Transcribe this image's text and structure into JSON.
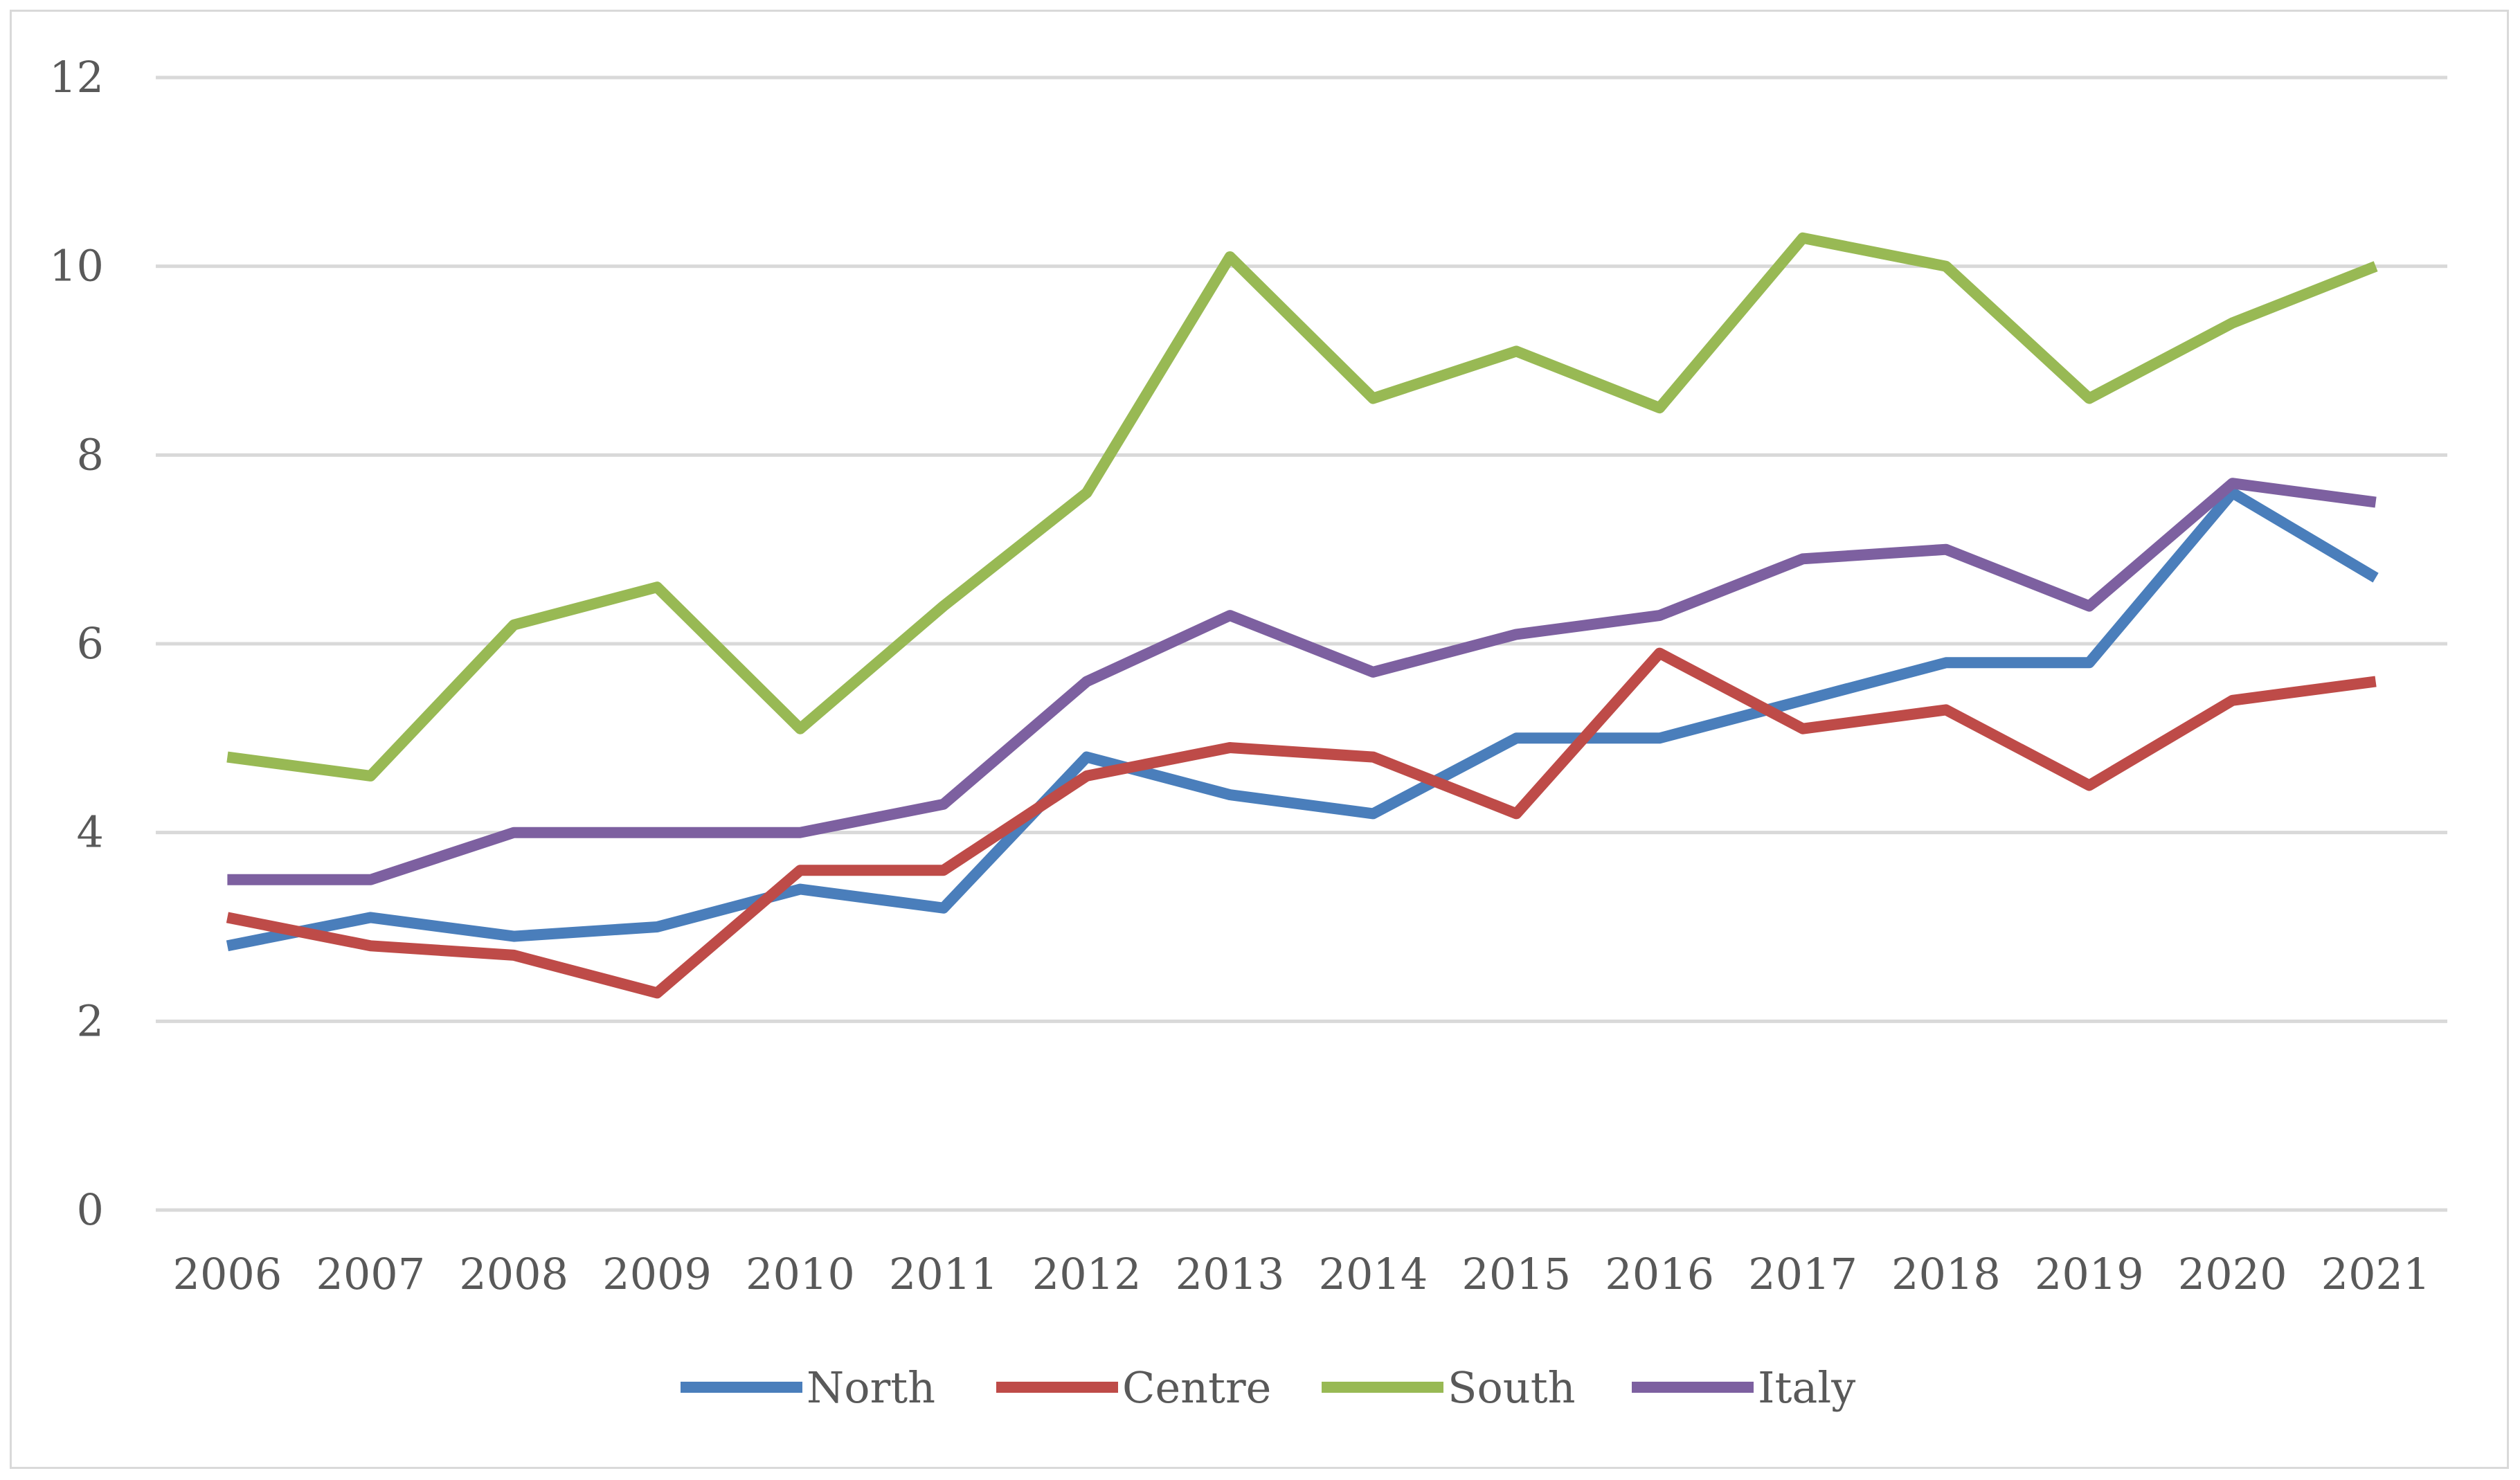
{
  "chart_data": {
    "type": "line",
    "title": "",
    "xlabel": "",
    "ylabel": "",
    "ylim": [
      0,
      12
    ],
    "yticks": [
      0,
      2,
      4,
      6,
      8,
      10,
      12
    ],
    "grid": true,
    "legend_position": "bottom",
    "categories": [
      "2006",
      "2007",
      "2008",
      "2009",
      "2010",
      "2011",
      "2012",
      "2013",
      "2014",
      "2015",
      "2016",
      "2017",
      "2018",
      "2019",
      "2020",
      "2021"
    ],
    "series": [
      {
        "name": "North",
        "color": "#4a7ebb",
        "values": [
          2.8,
          3.1,
          2.9,
          3.0,
          3.4,
          3.2,
          4.8,
          4.4,
          4.2,
          5.0,
          5.0,
          5.4,
          5.8,
          5.8,
          7.6,
          6.7
        ]
      },
      {
        "name": "Centre",
        "color": "#be4b48",
        "values": [
          3.1,
          2.8,
          2.7,
          2.3,
          3.6,
          3.6,
          4.6,
          4.9,
          4.8,
          4.2,
          5.9,
          5.1,
          5.3,
          4.5,
          5.4,
          5.6
        ]
      },
      {
        "name": "South",
        "color": "#98b954",
        "values": [
          4.8,
          4.6,
          6.2,
          6.6,
          5.1,
          6.4,
          7.6,
          10.1,
          8.6,
          9.1,
          8.5,
          10.3,
          10.0,
          8.6,
          9.4,
          10.0
        ]
      },
      {
        "name": "Italy",
        "color": "#7d60a0",
        "values": [
          3.5,
          3.5,
          4.0,
          4.0,
          4.0,
          4.3,
          5.6,
          6.3,
          5.7,
          6.1,
          6.3,
          6.9,
          7.0,
          6.4,
          7.7,
          7.5
        ]
      }
    ]
  }
}
